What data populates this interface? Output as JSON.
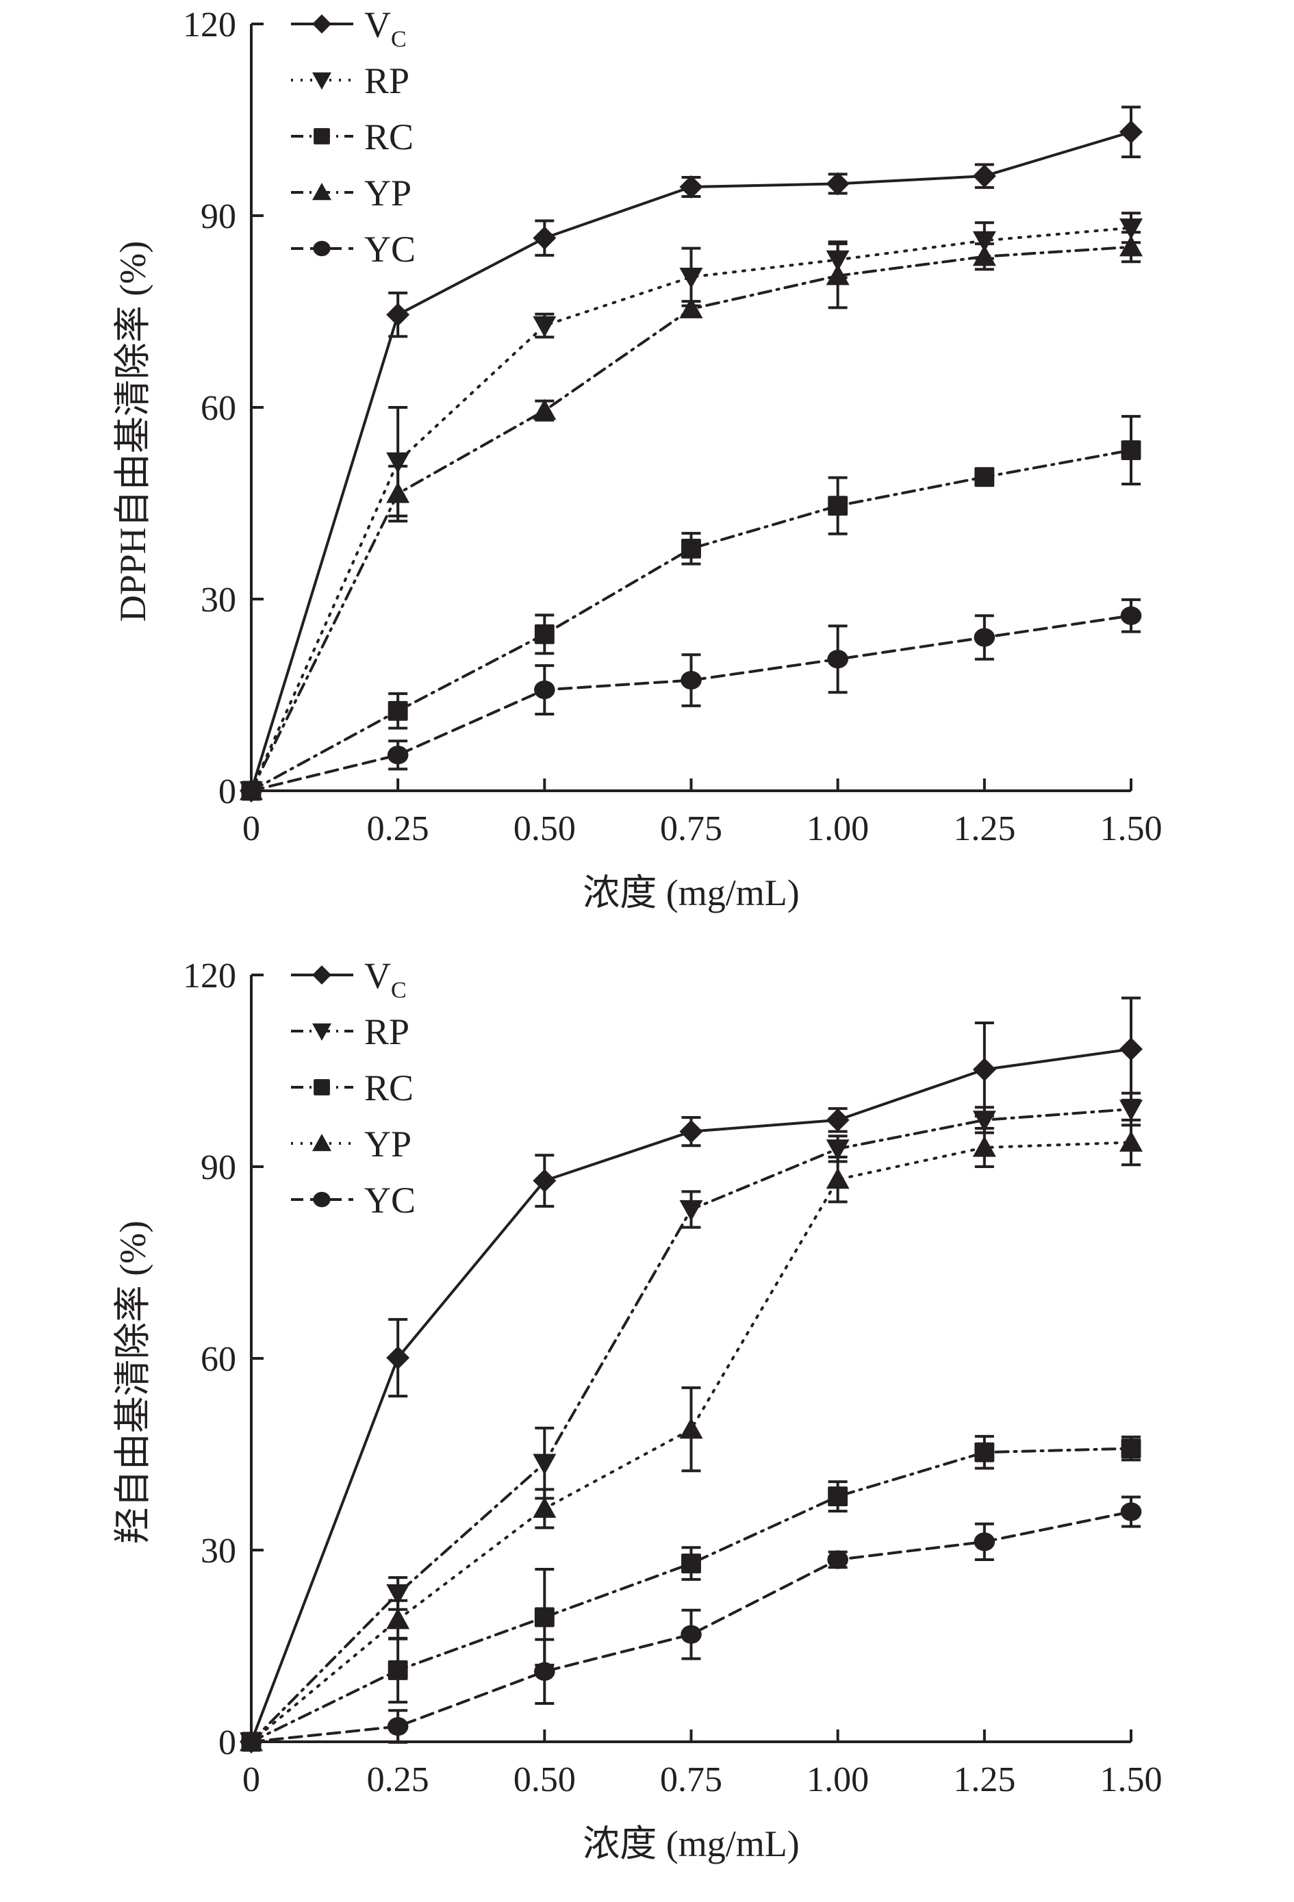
{
  "chart_data": [
    {
      "type": "line",
      "title": "",
      "xlabel": "浓度 (mg/mL)",
      "ylabel": "DPPH自由基清除率 (%)",
      "x": [
        0,
        0.25,
        0.5,
        0.75,
        1.0,
        1.25,
        1.5
      ],
      "x_tick_labels": [
        "0",
        "0.25",
        "0.50",
        "0.75",
        "1.00",
        "1.25",
        "1.50"
      ],
      "y_ticks": [
        0,
        30,
        60,
        90,
        120
      ],
      "y_tick_labels": [
        "0",
        "30",
        "60",
        "90",
        "120"
      ],
      "xlim": [
        0,
        1.5
      ],
      "ylim": [
        0,
        120
      ],
      "grid": false,
      "legend_position": "top-left",
      "series": [
        {
          "name": "V",
          "name_sub": "C",
          "marker": "diamond",
          "line": "solid",
          "values": [
            0,
            74.5,
            86.5,
            94.5,
            95.0,
            96.2,
            103.1
          ],
          "errors": [
            0,
            3.4,
            2.7,
            1.5,
            1.5,
            1.8,
            3.9
          ]
        },
        {
          "name": "RP",
          "name_sub": "",
          "marker": "triangle-down",
          "line": "dotted",
          "values": [
            0,
            51.5,
            72.8,
            80.4,
            83.1,
            86.1,
            88.1
          ],
          "errors": [
            0,
            8.5,
            1.8,
            4.5,
            2.8,
            2.8,
            2.3
          ]
        },
        {
          "name": "RC",
          "name_sub": "",
          "marker": "square",
          "line": "dashdot",
          "values": [
            0,
            12.5,
            24.5,
            37.9,
            44.6,
            49.1,
            53.3
          ],
          "errors": [
            0,
            2.7,
            3.0,
            2.4,
            4.4,
            1.0,
            5.3
          ]
        },
        {
          "name": "YP",
          "name_sub": "",
          "marker": "triangle-up",
          "line": "dashdot",
          "values": [
            0,
            46.5,
            59.5,
            75.4,
            80.6,
            83.6,
            85.1
          ],
          "errors": [
            0,
            4.3,
            1.5,
            1.2,
            5.0,
            2.0,
            2.3
          ]
        },
        {
          "name": "YC",
          "name_sub": "",
          "marker": "circle",
          "line": "dashed",
          "values": [
            0,
            5.6,
            15.8,
            17.3,
            20.6,
            24.0,
            27.4
          ],
          "errors": [
            0,
            2.2,
            3.8,
            4.0,
            5.2,
            3.4,
            2.5
          ]
        }
      ]
    },
    {
      "type": "line",
      "title": "",
      "xlabel": "浓度 (mg/mL)",
      "ylabel": "羟自由基清除率 (%)",
      "x": [
        0,
        0.25,
        0.5,
        0.75,
        1.0,
        1.25,
        1.5
      ],
      "x_tick_labels": [
        "0",
        "0.25",
        "0.50",
        "0.75",
        "1.00",
        "1.25",
        "1.50"
      ],
      "y_ticks": [
        0,
        30,
        60,
        90,
        120
      ],
      "y_tick_labels": [
        "0",
        "30",
        "60",
        "90",
        "120"
      ],
      "xlim": [
        0,
        1.5
      ],
      "ylim": [
        0,
        120
      ],
      "grid": false,
      "legend_position": "top-left",
      "series": [
        {
          "name": "V",
          "name_sub": "C",
          "marker": "diamond",
          "line": "solid",
          "values": [
            0,
            60.1,
            87.8,
            95.5,
            97.3,
            105.2,
            108.4
          ],
          "errors": [
            0,
            6.0,
            4.0,
            2.2,
            1.8,
            7.3,
            8.0
          ]
        },
        {
          "name": "RP",
          "name_sub": "",
          "marker": "triangle-down",
          "line": "dashdot",
          "values": [
            0,
            23.2,
            43.6,
            83.3,
            92.8,
            97.3,
            99.0
          ],
          "errors": [
            0,
            2.5,
            5.5,
            2.8,
            2.0,
            2.0,
            2.5
          ]
        },
        {
          "name": "RC",
          "name_sub": "",
          "marker": "square",
          "line": "dashdot",
          "values": [
            0,
            11.2,
            19.5,
            27.9,
            38.4,
            45.3,
            45.9
          ],
          "errors": [
            0,
            5.0,
            7.5,
            2.5,
            2.3,
            2.5,
            1.8
          ]
        },
        {
          "name": "YP",
          "name_sub": "",
          "marker": "triangle-up",
          "line": "dotted",
          "values": [
            0,
            19.1,
            36.5,
            48.9,
            88.0,
            93.0,
            93.8
          ],
          "errors": [
            0,
            3.0,
            3.0,
            6.5,
            3.5,
            3.0,
            3.5
          ]
        },
        {
          "name": "YC",
          "name_sub": "",
          "marker": "circle",
          "line": "dashed",
          "values": [
            0,
            2.4,
            11.0,
            16.8,
            28.5,
            31.3,
            36.0
          ],
          "errors": [
            0,
            2.5,
            5.0,
            3.8,
            1.2,
            2.8,
            2.3
          ]
        }
      ]
    }
  ],
  "colors": {
    "ink": "#231f20",
    "background": "#ffffff"
  }
}
